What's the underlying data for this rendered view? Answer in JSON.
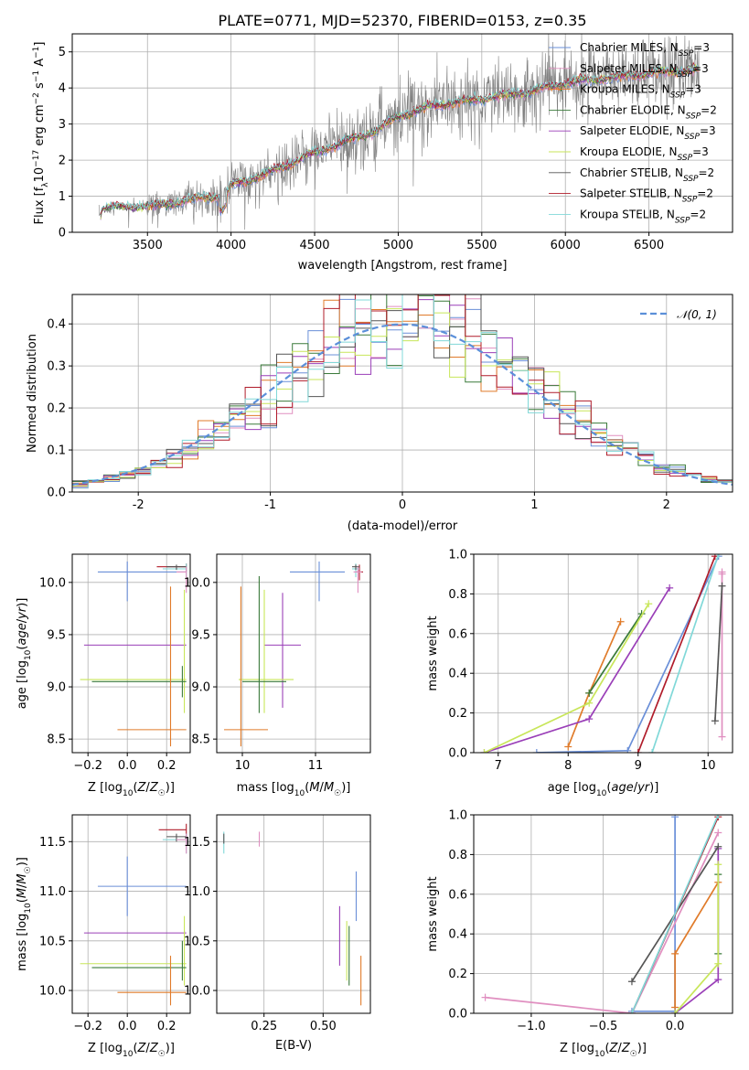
{
  "colors": {
    "chabrier_miles": "#6a8fd8",
    "salpeter_miles": "#e08fc0",
    "kroupa_miles": "#e07b2a",
    "chabrier_elodie": "#3a7a3a",
    "salpeter_elodie": "#9a3fb8",
    "kroupa_elodie": "#c8e65a",
    "chabrier_stelib": "#555555",
    "salpeter_stelib": "#b01c2a",
    "kroupa_stelib": "#80d8d8",
    "data": "#808080",
    "normal": "#5b8fd9"
  },
  "chart_data": [
    {
      "id": "spectrum",
      "type": "line",
      "title": "PLATE=0771, MJD=52370, FIBERID=0153, z=0.35",
      "xlabel": "wavelength [Angstrom, rest frame]",
      "ylabel": "Flux [f_λ 10^-17 erg cm^-2 s^-1 A^-1]",
      "xlim": [
        3050,
        7000
      ],
      "ylim": [
        0,
        5.5
      ],
      "xticks": [
        3500,
        4000,
        4500,
        5000,
        5500,
        6000,
        6500
      ],
      "yticks": [
        0,
        1,
        2,
        3,
        4,
        5
      ],
      "legend_position": "top-right",
      "legend": [
        {
          "label": "Chabrier MILES, N_SSP=3",
          "color_key": "chabrier_miles"
        },
        {
          "label": "Salpeter MILES, N_SSP=3",
          "color_key": "salpeter_miles"
        },
        {
          "label": "Kroupa MILES, N_SSP=3",
          "color_key": "kroupa_miles"
        },
        {
          "label": "Chabrier ELODIE, N_SSP=2",
          "color_key": "chabrier_elodie"
        },
        {
          "label": "Salpeter ELODIE, N_SSP=3",
          "color_key": "salpeter_elodie"
        },
        {
          "label": "Kroupa ELODIE, N_SSP=3",
          "color_key": "kroupa_elodie"
        },
        {
          "label": "Chabrier STELIB, N_SSP=2",
          "color_key": "chabrier_stelib"
        },
        {
          "label": "Salpeter STELIB, N_SSP=2",
          "color_key": "salpeter_stelib"
        },
        {
          "label": "Kroupa STELIB, N_SSP=2",
          "color_key": "kroupa_stelib"
        }
      ],
      "continuum": [
        [
          3210,
          0.45
        ],
        [
          3230,
          0.65
        ],
        [
          3350,
          0.7
        ],
        [
          3500,
          0.7
        ],
        [
          3700,
          0.85
        ],
        [
          3900,
          1.0
        ],
        [
          3950,
          0.9
        ],
        [
          4000,
          1.3
        ],
        [
          4200,
          1.6
        ],
        [
          4500,
          2.2
        ],
        [
          4860,
          2.8
        ],
        [
          5000,
          3.2
        ],
        [
          5200,
          3.5
        ],
        [
          5500,
          3.7
        ],
        [
          5800,
          3.9
        ],
        [
          6000,
          4.15
        ],
        [
          6300,
          4.3
        ],
        [
          6500,
          4.4
        ],
        [
          6800,
          4.5
        ]
      ]
    },
    {
      "id": "residuals",
      "type": "histogram",
      "xlabel": "(data-model)/error",
      "ylabel": "Normed distribution",
      "xlim": [
        -2.5,
        2.5
      ],
      "ylim": [
        0,
        0.47
      ],
      "xticks": [
        -2,
        -1,
        0,
        1,
        2
      ],
      "yticks": [
        0.0,
        0.1,
        0.2,
        0.3,
        0.4
      ],
      "legend_position": "top-right",
      "normal_label": "𝒩(0, 1)",
      "bins": 42
    },
    {
      "id": "age_vs_Z",
      "type": "errorbar",
      "xlabel": "Z [log10(Z/Z☉)]",
      "ylabel": "age  [log10(age/yr)]",
      "xlim": [
        -0.28,
        0.32
      ],
      "ylim": [
        8.37,
        10.27
      ],
      "xticks": [
        -0.2,
        0.0,
        0.2
      ],
      "xtick_labels": [
        "−0.2",
        "0.0",
        "0.2"
      ],
      "yticks": [
        8.5,
        9.0,
        9.5,
        10.0
      ],
      "points": [
        {
          "c": "chabrier_miles",
          "x": 0.0,
          "y": 10.1,
          "xe": [
            -0.15,
            0.3
          ],
          "ye": [
            9.82,
            10.2
          ]
        },
        {
          "c": "salpeter_stelib",
          "x": 0.3,
          "y": 10.15,
          "xe": [
            0.15,
            0.3
          ],
          "ye": [
            10.1,
            10.18
          ]
        },
        {
          "c": "kroupa_stelib",
          "x": 0.3,
          "y": 10.13,
          "xe": [
            0.18,
            0.3
          ],
          "ye": [
            10.05,
            10.18
          ]
        },
        {
          "c": "chabrier_stelib",
          "x": 0.25,
          "y": 10.15,
          "xe": [
            0.2,
            0.3
          ],
          "ye": [
            10.12,
            10.17
          ]
        },
        {
          "c": "salpeter_elodie",
          "x": 0.29,
          "y": 9.4,
          "xe": [
            -0.22,
            0.3
          ],
          "ye": [
            9.38,
            9.42
          ]
        },
        {
          "c": "kroupa_elodie",
          "x": 0.29,
          "y": 9.07,
          "xe": [
            -0.24,
            0.3
          ],
          "ye": [
            8.75,
            9.93
          ]
        },
        {
          "c": "chabrier_elodie",
          "x": 0.28,
          "y": 9.05,
          "xe": [
            -0.18,
            0.3
          ],
          "ye": [
            8.9,
            9.2
          ]
        },
        {
          "c": "kroupa_miles",
          "x": 0.22,
          "y": 8.59,
          "xe": [
            -0.05,
            0.3
          ],
          "ye": [
            8.43,
            9.96
          ]
        },
        {
          "c": "salpeter_miles",
          "x": 0.3,
          "y": 10.1,
          "xe": [
            0.25,
            0.3
          ],
          "ye": [
            9.9,
            10.15
          ]
        }
      ]
    },
    {
      "id": "age_vs_mass",
      "type": "errorbar",
      "xlabel": "mass [log10(M/M☉)]",
      "xlim": [
        9.65,
        11.75
      ],
      "ylim": [
        8.37,
        10.27
      ],
      "xticks": [
        10,
        11
      ],
      "yticks": [
        8.5,
        9.0,
        9.5,
        10.0
      ],
      "points": [
        {
          "c": "chabrier_miles",
          "x": 11.05,
          "y": 10.1,
          "xe": [
            10.65,
            11.4
          ],
          "ye": [
            9.82,
            10.2
          ]
        },
        {
          "c": "salpeter_stelib",
          "x": 11.6,
          "y": 10.1,
          "xe": [
            11.55,
            11.65
          ],
          "ye": [
            10.02,
            10.17
          ]
        },
        {
          "c": "kroupa_stelib",
          "x": 11.55,
          "y": 10.13,
          "xe": [
            11.5,
            11.6
          ],
          "ye": [
            10.05,
            10.18
          ]
        },
        {
          "c": "chabrier_stelib",
          "x": 11.55,
          "y": 10.15,
          "xe": [
            11.5,
            11.6
          ],
          "ye": [
            10.12,
            10.17
          ]
        },
        {
          "c": "salpeter_elodie",
          "x": 10.55,
          "y": 9.4,
          "xe": [
            10.3,
            10.8
          ],
          "ye": [
            8.8,
            9.9
          ]
        },
        {
          "c": "kroupa_elodie",
          "x": 10.3,
          "y": 9.07,
          "xe": [
            9.95,
            10.7
          ],
          "ye": [
            8.75,
            9.93
          ]
        },
        {
          "c": "chabrier_elodie",
          "x": 10.23,
          "y": 9.05,
          "xe": [
            10.0,
            10.6
          ],
          "ye": [
            8.75,
            10.06
          ]
        },
        {
          "c": "kroupa_miles",
          "x": 9.98,
          "y": 8.59,
          "xe": [
            9.75,
            10.35
          ],
          "ye": [
            8.43,
            9.96
          ]
        },
        {
          "c": "salpeter_miles",
          "x": 11.58,
          "y": 10.1,
          "xe": [
            11.52,
            11.63
          ],
          "ye": [
            9.9,
            10.15
          ]
        }
      ]
    },
    {
      "id": "cum_weight_vs_age",
      "type": "line",
      "xlabel": "age  [log10(age/yr)]",
      "ylabel": "mass weight",
      "xlim": [
        6.65,
        10.35
      ],
      "ylim": [
        0,
        1.0
      ],
      "xticks": [
        7,
        8,
        9,
        10
      ],
      "yticks": [
        0.0,
        0.2,
        0.4,
        0.6,
        0.8,
        1.0
      ],
      "series": [
        {
          "c": "chabrier_miles",
          "x": [
            7.55,
            8.85,
            10.15
          ],
          "y": [
            0.0,
            0.01,
            0.99
          ]
        },
        {
          "c": "salpeter_miles",
          "x": [
            10.2,
            10.2,
            10.2
          ],
          "y": [
            0.08,
            0.9,
            0.91
          ]
        },
        {
          "c": "kroupa_miles",
          "x": [
            8.0,
            8.3,
            8.75
          ],
          "y": [
            0.03,
            0.3,
            0.66
          ]
        },
        {
          "c": "chabrier_elodie",
          "x": [
            8.3,
            9.05
          ],
          "y": [
            0.3,
            0.7
          ]
        },
        {
          "c": "salpeter_elodie",
          "x": [
            6.8,
            8.3,
            9.45
          ],
          "y": [
            0.0,
            0.17,
            0.83
          ]
        },
        {
          "c": "kroupa_elodie",
          "x": [
            6.8,
            8.3,
            9.15
          ],
          "y": [
            0.0,
            0.25,
            0.75
          ]
        },
        {
          "c": "chabrier_stelib",
          "x": [
            10.1,
            10.2
          ],
          "y": [
            0.16,
            0.84
          ]
        },
        {
          "c": "salpeter_stelib",
          "x": [
            9.0,
            10.1
          ],
          "y": [
            0.0,
            0.99
          ]
        },
        {
          "c": "kroupa_stelib",
          "x": [
            9.2,
            10.15
          ],
          "y": [
            0.0,
            1.0
          ]
        }
      ]
    },
    {
      "id": "mass_vs_Z",
      "type": "errorbar",
      "xlabel": "Z [log10(Z/Z☉)]",
      "ylabel": "mass [log10(M/M☉)]",
      "xlim": [
        -0.28,
        0.32
      ],
      "ylim": [
        9.77,
        11.77
      ],
      "xticks": [
        -0.2,
        0.0,
        0.2
      ],
      "xtick_labels": [
        "−0.2",
        "0.0",
        "0.2"
      ],
      "yticks": [
        10.0,
        10.5,
        11.0,
        11.5
      ],
      "points": [
        {
          "c": "chabrier_miles",
          "x": 0.0,
          "y": 11.05,
          "xe": [
            -0.15,
            0.3
          ],
          "ye": [
            10.75,
            11.35
          ]
        },
        {
          "c": "salpeter_stelib",
          "x": 0.3,
          "y": 11.62,
          "xe": [
            0.16,
            0.3
          ],
          "ye": [
            11.55,
            11.68
          ]
        },
        {
          "c": "kroupa_stelib",
          "x": 0.3,
          "y": 11.52,
          "xe": [
            0.18,
            0.3
          ],
          "ye": [
            11.38,
            11.58
          ]
        },
        {
          "c": "chabrier_stelib",
          "x": 0.25,
          "y": 11.55,
          "xe": [
            0.2,
            0.3
          ],
          "ye": [
            11.5,
            11.58
          ]
        },
        {
          "c": "salpeter_elodie",
          "x": 0.29,
          "y": 10.58,
          "xe": [
            -0.22,
            0.3
          ],
          "ye": [
            10.56,
            10.6
          ]
        },
        {
          "c": "kroupa_elodie",
          "x": 0.29,
          "y": 10.27,
          "xe": [
            -0.24,
            0.3
          ],
          "ye": [
            10.05,
            10.75
          ]
        },
        {
          "c": "chabrier_elodie",
          "x": 0.28,
          "y": 10.23,
          "xe": [
            -0.18,
            0.3
          ],
          "ye": [
            10.1,
            10.5
          ]
        },
        {
          "c": "kroupa_miles",
          "x": 0.22,
          "y": 9.98,
          "xe": [
            -0.05,
            0.3
          ],
          "ye": [
            9.85,
            10.35
          ]
        },
        {
          "c": "salpeter_miles",
          "x": 0.3,
          "y": 11.52,
          "xe": [
            0.25,
            0.3
          ],
          "ye": [
            11.38,
            11.58
          ]
        }
      ]
    },
    {
      "id": "mass_vs_ebv",
      "type": "errorbar",
      "xlabel": "E(B-V)",
      "xlim": [
        0.05,
        0.7
      ],
      "ylim": [
        9.77,
        11.77
      ],
      "xticks": [
        0.25,
        0.5
      ],
      "xtick_labels": [
        "0.25",
        "0.50"
      ],
      "yticks": [
        10.0,
        10.5,
        11.0,
        11.5
      ],
      "points": [
        {
          "c": "kroupa_stelib",
          "x": 0.08,
          "y": 11.5,
          "xe": [
            0.08,
            0.08
          ],
          "ye": [
            11.38,
            11.6
          ]
        },
        {
          "c": "chabrier_stelib",
          "x": 0.08,
          "y": 11.53,
          "xe": [
            0.08,
            0.08
          ],
          "ye": [
            11.48,
            11.58
          ]
        },
        {
          "c": "salpeter_miles",
          "x": 0.23,
          "y": 11.52,
          "xe": [
            0.23,
            0.23
          ],
          "ye": [
            11.45,
            11.6
          ]
        },
        {
          "c": "chabrier_miles",
          "x": 0.64,
          "y": 10.95,
          "xe": [
            0.64,
            0.64
          ],
          "ye": [
            10.7,
            11.2
          ]
        },
        {
          "c": "salpeter_elodie",
          "x": 0.57,
          "y": 10.5,
          "xe": [
            0.57,
            0.57
          ],
          "ye": [
            10.25,
            10.85
          ]
        },
        {
          "c": "kroupa_elodie",
          "x": 0.6,
          "y": 10.4,
          "xe": [
            0.6,
            0.6
          ],
          "ye": [
            10.1,
            10.7
          ]
        },
        {
          "c": "chabrier_elodie",
          "x": 0.61,
          "y": 10.35,
          "xe": [
            0.61,
            0.61
          ],
          "ye": [
            10.05,
            10.65
          ]
        },
        {
          "c": "kroupa_miles",
          "x": 0.66,
          "y": 10.1,
          "xe": [
            0.66,
            0.66
          ],
          "ye": [
            9.85,
            10.35
          ]
        }
      ]
    },
    {
      "id": "cum_weight_vs_Z",
      "type": "line",
      "xlabel": "Z [log10(Z/Z☉)]",
      "ylabel": "mass weight",
      "xlim": [
        -1.4,
        0.4
      ],
      "ylim": [
        0,
        1.0
      ],
      "xticks": [
        -1.0,
        -0.5,
        0.0
      ],
      "xtick_labels": [
        "−1.0",
        "−0.5",
        "0.0"
      ],
      "yticks": [
        0.0,
        0.2,
        0.4,
        0.6,
        0.8,
        1.0
      ],
      "series": [
        {
          "c": "chabrier_miles",
          "x": [
            -0.3,
            0.0,
            0.0
          ],
          "y": [
            0.01,
            0.01,
            0.99
          ]
        },
        {
          "c": "salpeter_miles",
          "x": [
            -1.32,
            -0.3,
            0.3
          ],
          "y": [
            0.08,
            0.0,
            0.91
          ]
        },
        {
          "c": "kroupa_miles",
          "x": [
            0.0,
            0.0,
            0.3
          ],
          "y": [
            0.03,
            0.3,
            0.66
          ]
        },
        {
          "c": "chabrier_elodie",
          "x": [
            0.3,
            0.3
          ],
          "y": [
            0.3,
            0.7
          ]
        },
        {
          "c": "salpeter_elodie",
          "x": [
            0.0,
            0.3,
            0.3
          ],
          "y": [
            0.0,
            0.17,
            0.83
          ]
        },
        {
          "c": "kroupa_elodie",
          "x": [
            0.0,
            0.3,
            0.3
          ],
          "y": [
            0.0,
            0.25,
            0.75
          ]
        },
        {
          "c": "chabrier_stelib",
          "x": [
            -0.3,
            0.3
          ],
          "y": [
            0.16,
            0.84
          ]
        },
        {
          "c": "salpeter_stelib",
          "x": [
            -0.3,
            0.3
          ],
          "y": [
            0.0,
            0.99
          ]
        },
        {
          "c": "kroupa_stelib",
          "x": [
            -0.3,
            0.3
          ],
          "y": [
            0.0,
            1.0
          ]
        }
      ]
    }
  ]
}
